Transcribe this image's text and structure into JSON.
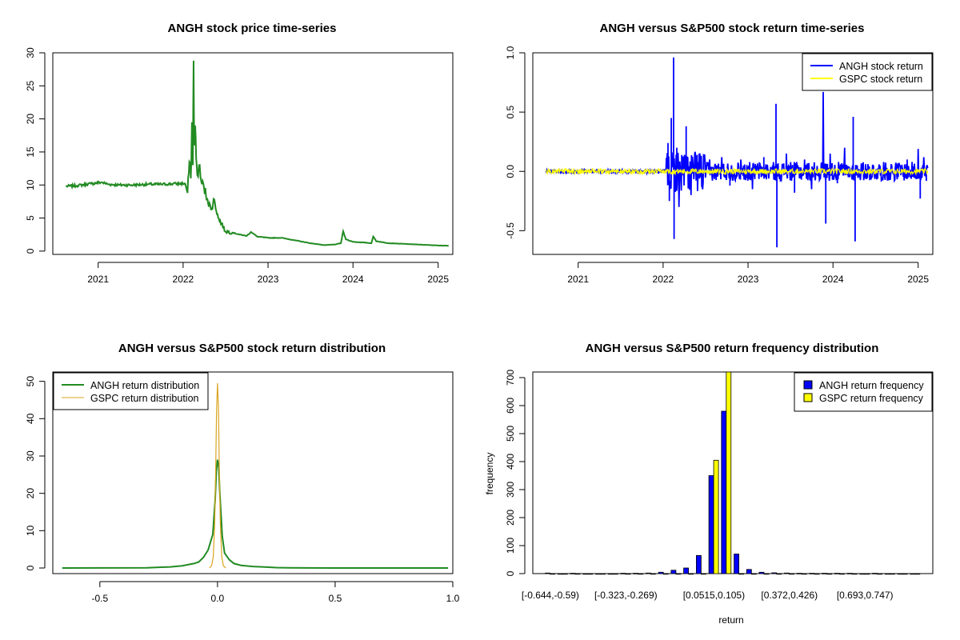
{
  "chart_data": [
    {
      "type": "line",
      "title": "ANGH stock price time-series",
      "xlabel": "",
      "ylabel": "",
      "x_ticks": [
        "2021",
        "2022",
        "2023",
        "2024",
        "2025"
      ],
      "y_ticks": [
        "0",
        "5",
        "10",
        "15",
        "20",
        "25",
        "30"
      ],
      "xlim": [
        "2020-06-20",
        "2025-03-05"
      ],
      "ylim": [
        -0.5,
        30
      ],
      "grid": false,
      "series": [
        {
          "color": "#228B22",
          "points": [
            [
              "2020-08-15",
              9.8
            ],
            [
              "2020-10-01",
              9.9
            ],
            [
              "2020-12-01",
              10.2
            ],
            [
              "2021-01-15",
              10.4
            ],
            [
              "2021-02-15",
              10.1
            ],
            [
              "2021-04-01",
              10.0
            ],
            [
              "2021-06-01",
              10.0
            ],
            [
              "2021-08-01",
              10.1
            ],
            [
              "2021-10-01",
              10.1
            ],
            [
              "2021-12-01",
              10.2
            ],
            [
              "2022-01-10",
              10.2
            ],
            [
              "2022-01-20",
              8.8
            ],
            [
              "2022-01-28",
              13.5
            ],
            [
              "2022-02-03",
              11.0
            ],
            [
              "2022-02-08",
              19.5
            ],
            [
              "2022-02-12",
              13.0
            ],
            [
              "2022-02-15",
              28.8
            ],
            [
              "2022-02-18",
              16.0
            ],
            [
              "2022-02-22",
              19.0
            ],
            [
              "2022-02-26",
              14.0
            ],
            [
              "2022-03-03",
              11.5
            ],
            [
              "2022-03-10",
              13.0
            ],
            [
              "2022-03-20",
              10.5
            ],
            [
              "2022-04-01",
              9.5
            ],
            [
              "2022-04-15",
              8.0
            ],
            [
              "2022-05-01",
              6.2
            ],
            [
              "2022-05-15",
              7.8
            ],
            [
              "2022-06-01",
              5.0
            ],
            [
              "2022-06-15",
              4.2
            ],
            [
              "2022-07-01",
              3.0
            ],
            [
              "2022-08-01",
              2.8
            ],
            [
              "2022-09-01",
              2.5
            ],
            [
              "2022-10-01",
              2.3
            ],
            [
              "2022-10-20",
              2.9
            ],
            [
              "2022-11-15",
              2.2
            ],
            [
              "2023-01-01",
              2.0
            ],
            [
              "2023-03-01",
              2.0
            ],
            [
              "2023-05-01",
              1.6
            ],
            [
              "2023-07-01",
              1.2
            ],
            [
              "2023-09-01",
              0.9
            ],
            [
              "2023-10-15",
              1.0
            ],
            [
              "2023-11-10",
              1.2
            ],
            [
              "2023-11-20",
              3.0
            ],
            [
              "2023-12-01",
              1.8
            ],
            [
              "2024-01-01",
              1.4
            ],
            [
              "2024-02-15",
              1.3
            ],
            [
              "2024-03-20",
              1.2
            ],
            [
              "2024-03-28",
              2.2
            ],
            [
              "2024-04-10",
              1.5
            ],
            [
              "2024-06-01",
              1.2
            ],
            [
              "2024-08-01",
              1.1
            ],
            [
              "2024-10-01",
              1.0
            ],
            [
              "2024-12-01",
              0.9
            ],
            [
              "2025-02-15",
              0.8
            ]
          ]
        }
      ]
    },
    {
      "type": "line",
      "title": "ANGH versus S&P500 stock return time-series",
      "xlabel": "",
      "ylabel": "",
      "x_ticks": [
        "2021",
        "2022",
        "2023",
        "2024",
        "2025"
      ],
      "y_ticks": [
        "-0.5",
        "0.0",
        "0.5",
        "1.0"
      ],
      "xlim": [
        "2020-06-20",
        "2025-03-05"
      ],
      "ylim": [
        -0.7,
        1.0
      ],
      "grid": false,
      "legend": {
        "position": "top-right",
        "entries": [
          "ANGH stock return",
          "GSPC stock return"
        ]
      },
      "series": [
        {
          "name": "ANGH stock return",
          "color": "#0000FF",
          "spikes": [
            [
              "2022-01-22",
              0.24
            ],
            [
              "2022-01-28",
              -0.25
            ],
            [
              "2022-02-05",
              0.45
            ],
            [
              "2022-02-15",
              0.96
            ],
            [
              "2022-02-17",
              -0.57
            ],
            [
              "2022-03-01",
              0.2
            ],
            [
              "2022-03-10",
              -0.3
            ],
            [
              "2022-04-10",
              0.38
            ],
            [
              "2022-05-01",
              -0.2
            ],
            [
              "2022-06-05",
              0.15
            ],
            [
              "2022-06-20",
              -0.15
            ],
            [
              "2022-07-20",
              0.1
            ],
            [
              "2022-09-10",
              0.12
            ],
            [
              "2022-10-15",
              -0.12
            ],
            [
              "2022-12-01",
              0.1
            ],
            [
              "2023-01-20",
              -0.15
            ],
            [
              "2023-03-10",
              0.12
            ],
            [
              "2023-05-01",
              0.57
            ],
            [
              "2023-05-05",
              -0.64
            ],
            [
              "2023-06-15",
              0.15
            ],
            [
              "2023-07-20",
              -0.18
            ],
            [
              "2023-09-01",
              0.1
            ],
            [
              "2023-10-01",
              -0.15
            ],
            [
              "2023-11-20",
              0.67
            ],
            [
              "2023-12-01",
              -0.44
            ],
            [
              "2023-12-20",
              0.15
            ],
            [
              "2024-01-20",
              -0.1
            ],
            [
              "2024-02-20",
              0.2
            ],
            [
              "2024-03-28",
              0.46
            ],
            [
              "2024-04-05",
              -0.59
            ],
            [
              "2024-05-20",
              0.06
            ],
            [
              "2024-08-15",
              0.06
            ],
            [
              "2024-11-15",
              0.1
            ],
            [
              "2025-01-01",
              0.19
            ],
            [
              "2025-01-10",
              -0.23
            ],
            [
              "2025-01-25",
              0.12
            ],
            [
              "2025-02-05",
              -0.08
            ]
          ]
        },
        {
          "name": "GSPC stock return",
          "color": "#FFFF00"
        }
      ]
    },
    {
      "type": "line",
      "title": "ANGH versus S&P500 stock return distribution",
      "xlabel": "",
      "ylabel": "",
      "x_ticks": [
        "-0.5",
        "0.0",
        "0.5",
        "1.0"
      ],
      "y_ticks": [
        "0",
        "10",
        "20",
        "30",
        "40",
        "50"
      ],
      "xlim": [
        -0.7,
        1.0
      ],
      "ylim": [
        -1.5,
        52.5
      ],
      "grid": false,
      "legend": {
        "position": "top-left",
        "entries": [
          "ANGH return distribution",
          "GSPC return distribution"
        ]
      },
      "series": [
        {
          "name": "ANGH return distribution",
          "color": "#228B22",
          "points": [
            [
              -0.66,
              0.0
            ],
            [
              -0.3,
              0.05
            ],
            [
              -0.25,
              0.2
            ],
            [
              -0.2,
              0.3
            ],
            [
              -0.15,
              0.6
            ],
            [
              -0.1,
              1.2
            ],
            [
              -0.08,
              1.6
            ],
            [
              -0.06,
              2.8
            ],
            [
              -0.04,
              4.8
            ],
            [
              -0.02,
              9.0
            ],
            [
              -0.01,
              18.0
            ],
            [
              -0.005,
              26.0
            ],
            [
              0.0,
              29.0
            ],
            [
              0.005,
              27.0
            ],
            [
              0.01,
              20.0
            ],
            [
              0.02,
              8.5
            ],
            [
              0.03,
              4.0
            ],
            [
              0.05,
              2.2
            ],
            [
              0.07,
              1.2
            ],
            [
              0.1,
              0.7
            ],
            [
              0.15,
              0.4
            ],
            [
              0.2,
              0.25
            ],
            [
              0.25,
              0.1
            ],
            [
              0.3,
              0.05
            ],
            [
              0.5,
              0.01
            ],
            [
              0.98,
              0.0
            ]
          ]
        },
        {
          "name": "GSPC return distribution",
          "color": "#DAA520",
          "points": [
            [
              -0.035,
              0.0
            ],
            [
              -0.025,
              0.6
            ],
            [
              -0.018,
              3.0
            ],
            [
              -0.012,
              12.0
            ],
            [
              -0.008,
              25.0
            ],
            [
              -0.004,
              42.0
            ],
            [
              0.0,
              49.5
            ],
            [
              0.004,
              43.0
            ],
            [
              0.008,
              26.0
            ],
            [
              0.012,
              12.0
            ],
            [
              0.018,
              3.0
            ],
            [
              0.025,
              0.6
            ],
            [
              0.035,
              0.0
            ]
          ]
        }
      ]
    },
    {
      "type": "bar",
      "title": "ANGH versus S&P500 return frequency distribution",
      "xlabel": "return",
      "ylabel": "frequency",
      "y_ticks": [
        "0",
        "100",
        "200",
        "300",
        "400",
        "500",
        "600",
        "700"
      ],
      "ylim": [
        0,
        720
      ],
      "grid": false,
      "legend": {
        "position": "top-right",
        "entries": [
          "ANGH return frequency",
          "GSPC return frequency"
        ]
      },
      "categories": [
        "[-0.644,-0.59)",
        "[-0.59,-0.537)",
        "[-0.537,-0.483)",
        "[-0.483,-0.43)",
        "[-0.43,-0.376)",
        "[-0.376,-0.323)",
        "[-0.323,-0.269)",
        "[-0.269,-0.216)",
        "[-0.216,-0.162)",
        "[-0.162,-0.109)",
        "[-0.109,-0.0555)",
        "[-0.0555,-0.00192)",
        "[-0.00192,0.0515)",
        "[0.0515,0.105)",
        "[0.105,0.159)",
        "[0.159,0.212)",
        "[0.212,0.266)",
        "[0.266,0.319)",
        "[0.319,0.372)",
        "[0.372,0.426)",
        "[0.426,0.479)",
        "[0.479,0.533)",
        "[0.533,0.586)",
        "[0.586,0.64)",
        "[0.64,0.693)",
        "[0.693,0.747)",
        "[0.747,0.8)",
        "[0.8,0.854)",
        "[0.854,0.907)",
        "[0.907,0.961)"
      ],
      "x_tick_labels": [
        {
          "index": 0,
          "label": "[-0.644,-0.59)"
        },
        {
          "index": 6,
          "label": "[-0.323,-0.269)"
        },
        {
          "index": 13,
          "label": "[0.0515,0.105)"
        },
        {
          "index": 19,
          "label": "[0.372,0.426)"
        },
        {
          "index": 25,
          "label": "[0.693,0.747)"
        }
      ],
      "series": [
        {
          "name": "ANGH return frequency",
          "color": "#0000FF",
          "values": [
            2,
            0,
            1,
            0,
            0,
            0,
            1,
            1,
            2,
            5,
            12,
            20,
            65,
            350,
            580,
            70,
            15,
            5,
            3,
            2,
            1,
            1,
            1,
            1,
            1,
            0,
            1,
            0,
            0,
            0
          ]
        },
        {
          "name": "GSPC return frequency",
          "color": "#FFFF00",
          "values": [
            0,
            0,
            0,
            0,
            0,
            0,
            0,
            0,
            0,
            0,
            0,
            0,
            0,
            405,
            720,
            0,
            0,
            0,
            0,
            0,
            0,
            0,
            0,
            0,
            0,
            0,
            0,
            0,
            0,
            0
          ]
        }
      ]
    }
  ]
}
